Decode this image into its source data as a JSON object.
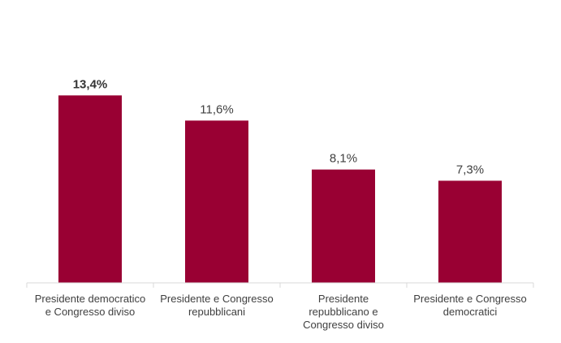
{
  "chart_data": {
    "type": "bar",
    "title": "",
    "xlabel": "",
    "ylabel": "",
    "categories": [
      [
        "Presidente democratico",
        "e Congresso diviso"
      ],
      [
        "Presidente e Congresso",
        "repubblicani"
      ],
      [
        "Presidente",
        "repubblicano e",
        "Congresso diviso"
      ],
      [
        "Presidente e Congresso",
        "democratici"
      ]
    ],
    "values": [
      13.4,
      11.6,
      8.1,
      7.3
    ],
    "value_labels": [
      "13,4%",
      "11,6%",
      "8,1%",
      "7,3%"
    ],
    "highlight_index": 0,
    "ylim": [
      0,
      14.7
    ],
    "grid": false,
    "legend": "none",
    "colors": {
      "bar": "#990033",
      "axis": "#d9d9d9",
      "text": "#404040"
    }
  }
}
